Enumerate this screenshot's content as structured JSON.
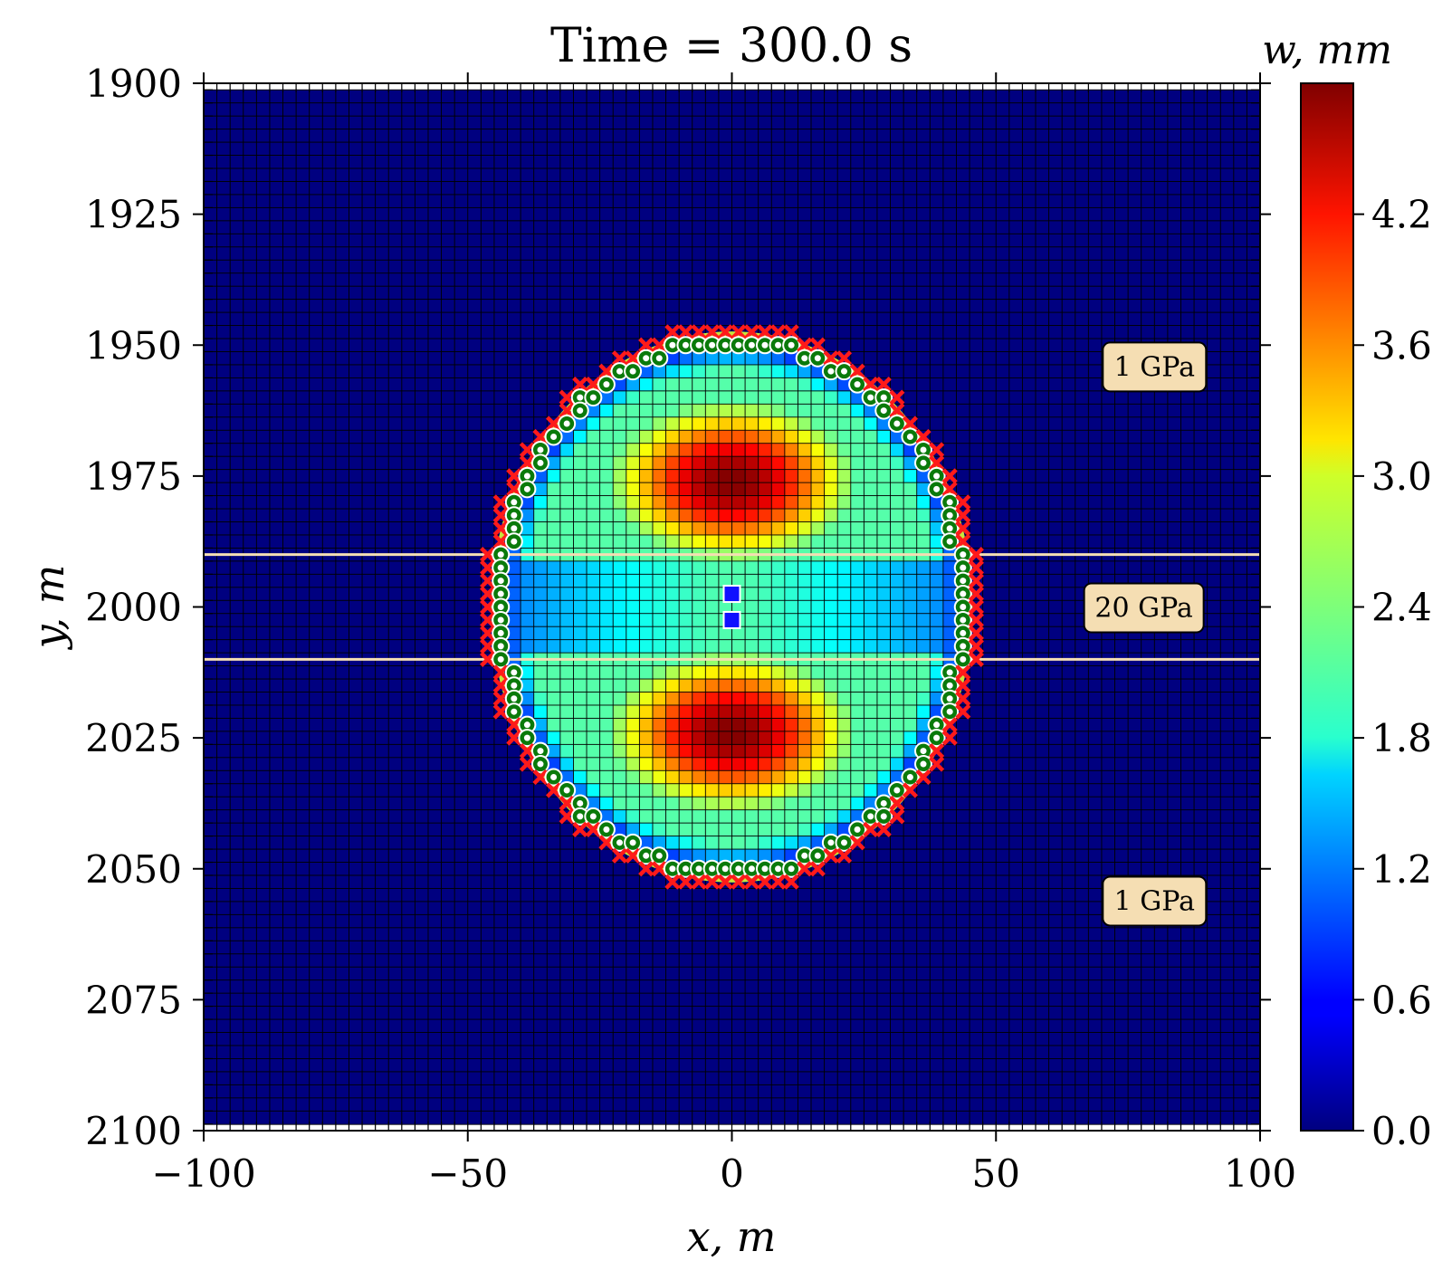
{
  "chart_data": {
    "type": "heatmap",
    "title": "Time = 300.0 s",
    "xlabel": "x, m",
    "ylabel": "y, m",
    "colorbar_label": "w, mm",
    "colormap": "jet",
    "xlim": [
      -100,
      100
    ],
    "ylim": [
      1900,
      2100
    ],
    "y_inverted": true,
    "x_ticks": [
      -100,
      -50,
      0,
      50,
      100
    ],
    "x_tick_labels": [
      "−100",
      "−50",
      "0",
      "50",
      "100"
    ],
    "y_ticks": [
      1900,
      1925,
      1950,
      1975,
      2000,
      2025,
      2050,
      2075,
      2100
    ],
    "y_tick_labels": [
      "1900",
      "1925",
      "1950",
      "1975",
      "2000",
      "2025",
      "2050",
      "2075",
      "2100"
    ],
    "colorbar_range": [
      0,
      4.8
    ],
    "colorbar_ticks": [
      0.0,
      0.6,
      1.2,
      1.8,
      2.4,
      3.0,
      3.6,
      4.2
    ],
    "colorbar_tick_labels": [
      "0.0",
      "0.6",
      "1.2",
      "1.8",
      "2.4",
      "3.0",
      "3.6",
      "4.2"
    ],
    "grid": {
      "x_min": -98.75,
      "x_max": 98.75,
      "y_min": 1902.5,
      "y_max": 2097.5,
      "cell_size": 2.5
    },
    "field": {
      "ellipse_center": [
        0,
        2000
      ],
      "ellipse_semi_axes": [
        45,
        52
      ],
      "peaks": [
        {
          "x": 0,
          "y": 1976,
          "w": 4.8
        },
        {
          "x": 0,
          "y": 2024,
          "w": 4.8
        }
      ],
      "layer_minimum_w": 0.9
    },
    "layer_boundaries_y": [
      1990,
      2010
    ],
    "layer_boundary_color": "#f5deb3",
    "front_ellipse_color": "#c8e63c",
    "marker_colors": {
      "red_x": "#ff1a1a",
      "green_ring": "#0a7a0a",
      "blue_square": "#1010ff"
    },
    "injection_points": [
      {
        "x": 0,
        "y": 1997.5
      },
      {
        "x": 0,
        "y": 2002.5
      }
    ],
    "region_labels": [
      {
        "text": "1 GPa",
        "x": 80,
        "y": 1954
      },
      {
        "text": "20 GPa",
        "x": 78,
        "y": 2000
      },
      {
        "text": "1 GPa",
        "x": 80,
        "y": 2056
      }
    ]
  }
}
